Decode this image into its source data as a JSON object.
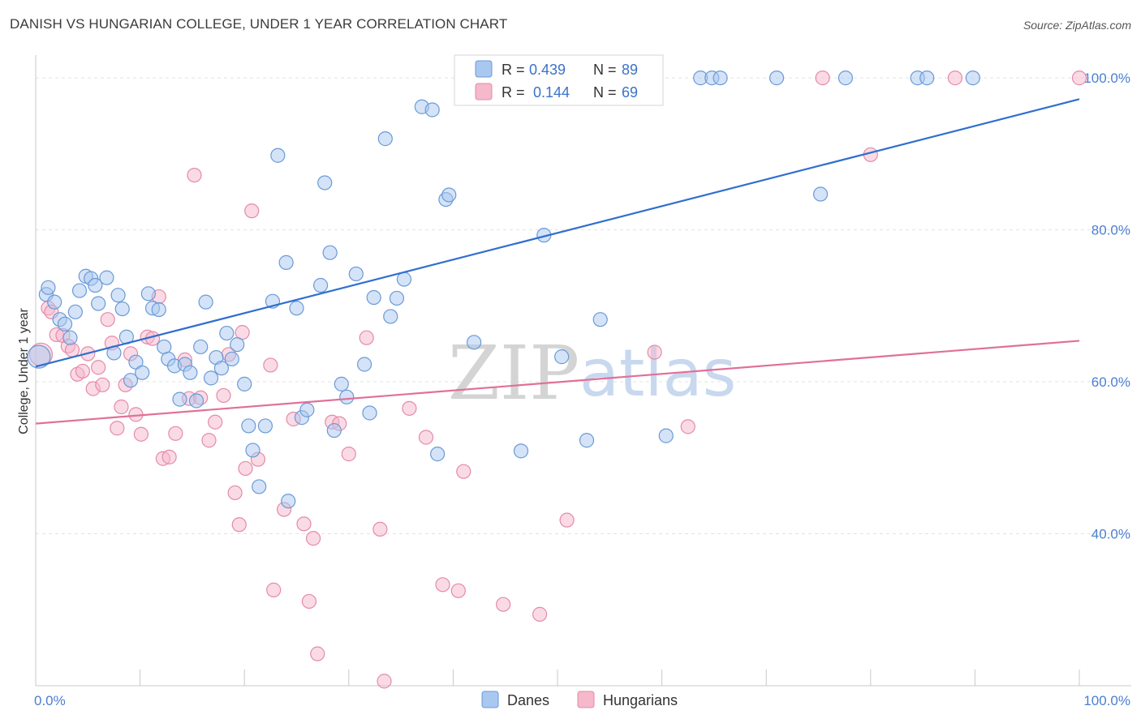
{
  "title": "DANISH VS HUNGARIAN COLLEGE, UNDER 1 YEAR CORRELATION CHART",
  "source": "Source: ZipAtlas.com",
  "watermark": {
    "zip": "ZIP",
    "atlas": "atlas"
  },
  "colors": {
    "danes_fill": "#a9c8f0",
    "danes_stroke": "#6a9ad8",
    "danes_line": "#2f6fcf",
    "hungarians_fill": "#f6b8cb",
    "hungarians_stroke": "#e58aa8",
    "hungarians_line": "#e0709a",
    "grid": "#e3e3e3",
    "axis_label": "#4a7fd0"
  },
  "legend": {
    "danes": {
      "r_label": "R = ",
      "r_value": "0.439",
      "n_label": "N = ",
      "n_value": "89"
    },
    "hungarians": {
      "r_label": "R = ",
      "r_value": "0.144",
      "n_label": "N = ",
      "n_value": "69"
    }
  },
  "bottom_legend": [
    "Danes",
    "Hungarians"
  ],
  "chart_data": {
    "type": "scatter",
    "title": "DANISH VS HUNGARIAN COLLEGE, UNDER 1 YEAR CORRELATION CHART",
    "xlabel": "",
    "ylabel": "College, Under 1 year",
    "xlim": [
      0,
      100
    ],
    "ylim": [
      20,
      103
    ],
    "x_ticks": [
      {
        "value": 0,
        "label": "0.0%"
      },
      {
        "value": 100,
        "label": "100.0%"
      }
    ],
    "y_ticks": [
      {
        "value": 40,
        "label": "40.0%"
      },
      {
        "value": 60,
        "label": "60.0%"
      },
      {
        "value": 80,
        "label": "80.0%"
      },
      {
        "value": 100,
        "label": "100.0%"
      }
    ],
    "grid": true,
    "legend_position": "top-center",
    "series": [
      {
        "name": "Danes",
        "r": 0.439,
        "n": 89,
        "trendline": [
          [
            0,
            62
          ],
          [
            100,
            97.2
          ]
        ],
        "points": [
          [
            0.3,
            63.3
          ],
          [
            1.0,
            71.5
          ],
          [
            1.2,
            72.4
          ],
          [
            1.8,
            70.5
          ],
          [
            2.3,
            68.2
          ],
          [
            2.8,
            67.6
          ],
          [
            3.3,
            65.8
          ],
          [
            3.8,
            69.2
          ],
          [
            4.2,
            72.0
          ],
          [
            4.8,
            73.9
          ],
          [
            5.3,
            73.6
          ],
          [
            5.7,
            72.7
          ],
          [
            6.0,
            70.3
          ],
          [
            6.8,
            73.7
          ],
          [
            7.5,
            63.8
          ],
          [
            7.9,
            71.4
          ],
          [
            8.3,
            69.6
          ],
          [
            8.7,
            65.9
          ],
          [
            9.1,
            60.2
          ],
          [
            9.6,
            62.6
          ],
          [
            10.2,
            61.2
          ],
          [
            10.8,
            71.6
          ],
          [
            11.2,
            69.7
          ],
          [
            11.8,
            69.5
          ],
          [
            12.3,
            64.6
          ],
          [
            12.7,
            63.0
          ],
          [
            13.3,
            62.1
          ],
          [
            13.8,
            57.7
          ],
          [
            14.3,
            62.3
          ],
          [
            14.8,
            61.2
          ],
          [
            15.4,
            57.5
          ],
          [
            15.8,
            64.6
          ],
          [
            16.3,
            70.5
          ],
          [
            16.8,
            60.5
          ],
          [
            17.3,
            63.2
          ],
          [
            17.8,
            61.8
          ],
          [
            18.3,
            66.4
          ],
          [
            18.8,
            63.0
          ],
          [
            19.3,
            64.9
          ],
          [
            20.0,
            59.7
          ],
          [
            20.4,
            54.2
          ],
          [
            20.8,
            51.0
          ],
          [
            21.4,
            46.2
          ],
          [
            22.0,
            54.2
          ],
          [
            22.7,
            70.6
          ],
          [
            23.2,
            89.8
          ],
          [
            24.0,
            75.7
          ],
          [
            24.2,
            44.3
          ],
          [
            25.0,
            69.7
          ],
          [
            25.5,
            55.3
          ],
          [
            26.0,
            56.3
          ],
          [
            27.3,
            72.7
          ],
          [
            27.7,
            86.2
          ],
          [
            28.2,
            77.0
          ],
          [
            28.6,
            53.6
          ],
          [
            29.3,
            59.7
          ],
          [
            29.8,
            58.0
          ],
          [
            30.7,
            74.2
          ],
          [
            31.5,
            62.3
          ],
          [
            32.0,
            55.9
          ],
          [
            32.4,
            71.1
          ],
          [
            33.5,
            92.0
          ],
          [
            34.0,
            68.6
          ],
          [
            34.6,
            71.0
          ],
          [
            35.3,
            73.5
          ],
          [
            37.0,
            96.2
          ],
          [
            38.0,
            95.8
          ],
          [
            38.5,
            50.5
          ],
          [
            39.3,
            84.0
          ],
          [
            39.6,
            84.6
          ],
          [
            42.0,
            65.2
          ],
          [
            42.5,
            100.0
          ],
          [
            46.5,
            50.9
          ],
          [
            48.7,
            79.3
          ],
          [
            50.4,
            63.3
          ],
          [
            52.6,
            100.0
          ],
          [
            52.8,
            52.3
          ],
          [
            54.1,
            68.2
          ],
          [
            55.3,
            100.0
          ],
          [
            60.4,
            52.9
          ],
          [
            63.7,
            100.0
          ],
          [
            64.8,
            100.0
          ],
          [
            65.6,
            100.0
          ],
          [
            71.0,
            100.0
          ],
          [
            75.2,
            84.7
          ],
          [
            77.6,
            100.0
          ],
          [
            84.5,
            100.0
          ],
          [
            85.4,
            100.0
          ],
          [
            89.8,
            100.0
          ]
        ]
      },
      {
        "name": "Hungarians",
        "r": 0.144,
        "n": 69,
        "trendline": [
          [
            0,
            54.5
          ],
          [
            100,
            65.4
          ]
        ],
        "points": [
          [
            0.5,
            63.6
          ],
          [
            1.2,
            69.7
          ],
          [
            1.5,
            69.2
          ],
          [
            2.0,
            66.2
          ],
          [
            2.6,
            66.1
          ],
          [
            3.1,
            64.7
          ],
          [
            3.5,
            64.2
          ],
          [
            4.0,
            61.0
          ],
          [
            4.5,
            61.4
          ],
          [
            5.0,
            63.7
          ],
          [
            5.5,
            59.1
          ],
          [
            6.0,
            61.9
          ],
          [
            6.4,
            59.6
          ],
          [
            6.9,
            68.2
          ],
          [
            7.3,
            65.1
          ],
          [
            7.8,
            53.9
          ],
          [
            8.2,
            56.7
          ],
          [
            8.6,
            59.6
          ],
          [
            9.1,
            63.7
          ],
          [
            9.6,
            55.7
          ],
          [
            10.1,
            53.1
          ],
          [
            10.7,
            65.9
          ],
          [
            11.2,
            65.7
          ],
          [
            11.8,
            71.2
          ],
          [
            12.2,
            49.9
          ],
          [
            12.8,
            50.1
          ],
          [
            13.4,
            53.2
          ],
          [
            14.3,
            62.9
          ],
          [
            14.7,
            57.8
          ],
          [
            15.2,
            87.2
          ],
          [
            15.8,
            57.9
          ],
          [
            16.6,
            52.3
          ],
          [
            17.2,
            54.7
          ],
          [
            18.0,
            58.2
          ],
          [
            18.5,
            63.6
          ],
          [
            19.1,
            45.4
          ],
          [
            19.5,
            41.2
          ],
          [
            19.8,
            66.5
          ],
          [
            20.1,
            48.6
          ],
          [
            20.7,
            82.5
          ],
          [
            21.3,
            49.8
          ],
          [
            22.5,
            62.2
          ],
          [
            22.8,
            32.6
          ],
          [
            23.8,
            43.2
          ],
          [
            24.7,
            55.1
          ],
          [
            25.7,
            41.3
          ],
          [
            26.2,
            31.1
          ],
          [
            26.6,
            39.4
          ],
          [
            27.0,
            24.2
          ],
          [
            28.4,
            54.7
          ],
          [
            29.1,
            54.5
          ],
          [
            30.0,
            50.5
          ],
          [
            31.7,
            65.8
          ],
          [
            33.0,
            40.6
          ],
          [
            33.4,
            20.6
          ],
          [
            35.8,
            56.5
          ],
          [
            37.4,
            52.7
          ],
          [
            39.0,
            33.3
          ],
          [
            40.5,
            32.5
          ],
          [
            41.0,
            48.2
          ],
          [
            44.8,
            30.7
          ],
          [
            48.3,
            29.4
          ],
          [
            50.9,
            41.8
          ],
          [
            59.3,
            63.9
          ],
          [
            62.5,
            54.1
          ],
          [
            75.4,
            100.0
          ],
          [
            80.0,
            89.9
          ],
          [
            88.1,
            100.0
          ],
          [
            100.0,
            100.0
          ]
        ]
      }
    ]
  }
}
